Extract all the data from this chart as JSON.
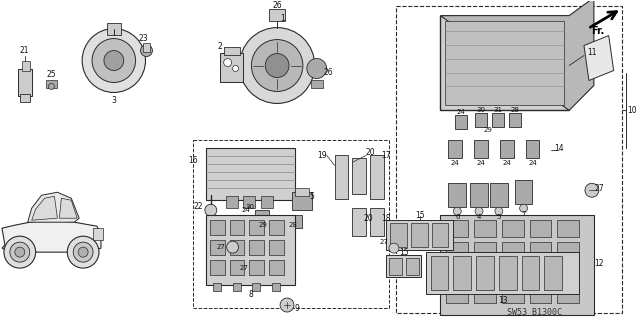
{
  "bg_color": "#ffffff",
  "fig_width": 6.38,
  "fig_height": 3.2,
  "dpi": 100,
  "diagram_code": "SW53 B1300C",
  "gray_light": "#c8c8c8",
  "gray_med": "#a0a0a0",
  "gray_dark": "#787878",
  "gray_fill": "#d8d8d8",
  "outline": "#333333"
}
